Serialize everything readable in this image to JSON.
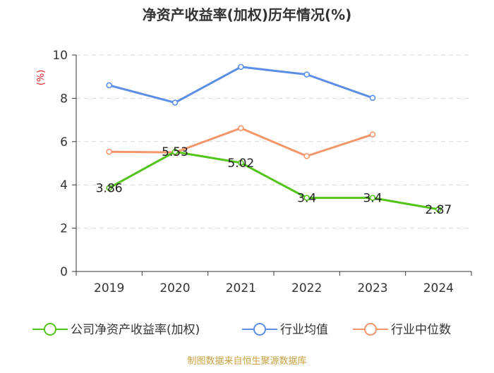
{
  "chart_data": {
    "type": "line",
    "title": "净资产收益率(加权)历年情况(%)",
    "ylabel": "(%)",
    "xlabel": "",
    "categories": [
      "2019",
      "2020",
      "2021",
      "2022",
      "2023",
      "2024"
    ],
    "ylim": [
      0,
      10
    ],
    "yticks": [
      "0",
      "2",
      "4",
      "6",
      "8",
      "10"
    ],
    "grid": true,
    "legend_position": "bottom",
    "series": [
      {
        "name": "公司净资产收益率(加权)",
        "color": "#52c41a",
        "values": [
          3.86,
          5.53,
          5.02,
          3.4,
          3.4,
          2.87
        ],
        "labels": [
          "3.86",
          "5.53",
          "5.02",
          "3.4",
          "3.4",
          "2.87"
        ]
      },
      {
        "name": "行业均值",
        "color": "#5b8ee6",
        "values": [
          8.6,
          7.8,
          9.45,
          9.1,
          8.02,
          null
        ]
      },
      {
        "name": "行业中位数",
        "color": "#f5956a",
        "values": [
          5.53,
          5.5,
          6.62,
          5.33,
          6.33,
          null
        ]
      }
    ]
  },
  "footer": "制图数据来自恒生聚源数据库"
}
